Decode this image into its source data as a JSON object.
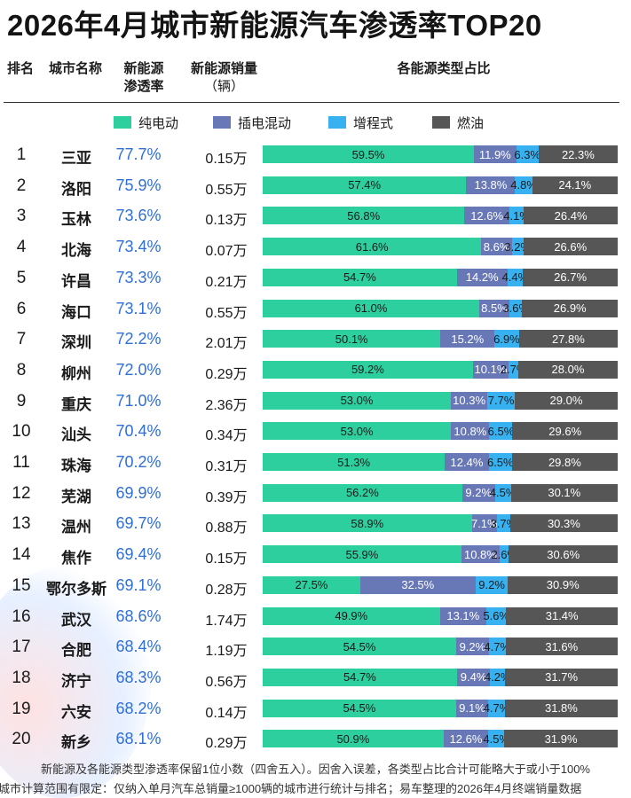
{
  "title": "2026年4月城市新能源汽车渗透率TOP20",
  "headers": {
    "rank": "排名",
    "city": "城市名称",
    "penetration_1": "新能源",
    "penetration_2": "渗透率",
    "sales_1": "新能源销量",
    "sales_2": "（辆）",
    "mix": "各能源类型占比"
  },
  "legend": [
    {
      "label": "纯电动",
      "color": "#2ecf9e"
    },
    {
      "label": "插电混动",
      "color": "#6878b6"
    },
    {
      "label": "增程式",
      "color": "#37b1f0"
    },
    {
      "label": "燃油",
      "color": "#565656"
    }
  ],
  "chart_data": {
    "type": "bar",
    "stacked": true,
    "normalized": true,
    "categories": [
      "三亚",
      "洛阳",
      "玉林",
      "北海",
      "许昌",
      "海口",
      "深圳",
      "柳州",
      "重庆",
      "汕头",
      "珠海",
      "芜湖",
      "温州",
      "焦作",
      "鄂尔多斯",
      "武汉",
      "合肥",
      "济宁",
      "六安",
      "新乡"
    ],
    "series": [
      {
        "name": "纯电动",
        "values": [
          59.5,
          57.4,
          56.8,
          61.6,
          54.7,
          61.0,
          50.1,
          59.2,
          53.0,
          53.0,
          51.3,
          56.2,
          58.9,
          55.9,
          27.5,
          49.9,
          54.5,
          54.7,
          54.5,
          50.9
        ]
      },
      {
        "name": "插电混动",
        "values": [
          11.9,
          13.8,
          12.6,
          8.6,
          14.2,
          8.5,
          15.2,
          10.1,
          10.3,
          10.8,
          12.4,
          9.2,
          7.1,
          10.8,
          32.5,
          13.1,
          9.2,
          9.4,
          9.1,
          12.6
        ]
      },
      {
        "name": "增程式",
        "values": [
          6.3,
          4.8,
          4.1,
          3.2,
          4.4,
          3.6,
          6.9,
          2.7,
          7.7,
          6.5,
          6.5,
          4.5,
          3.7,
          2.6,
          9.2,
          5.6,
          4.7,
          4.2,
          4.7,
          4.5
        ]
      },
      {
        "name": "燃油",
        "values": [
          22.3,
          24.1,
          26.4,
          26.6,
          26.7,
          26.9,
          27.8,
          28.0,
          29.0,
          29.6,
          29.8,
          30.1,
          30.3,
          30.6,
          30.9,
          31.4,
          31.6,
          31.7,
          31.8,
          31.9
        ]
      }
    ]
  },
  "rows": [
    {
      "rank": "1",
      "city": "三亚",
      "penetration": "77.7%",
      "sales": "0.15万"
    },
    {
      "rank": "2",
      "city": "洛阳",
      "penetration": "75.9%",
      "sales": "0.55万"
    },
    {
      "rank": "3",
      "city": "玉林",
      "penetration": "73.6%",
      "sales": "0.13万"
    },
    {
      "rank": "4",
      "city": "北海",
      "penetration": "73.4%",
      "sales": "0.07万"
    },
    {
      "rank": "5",
      "city": "许昌",
      "penetration": "73.3%",
      "sales": "0.21万"
    },
    {
      "rank": "6",
      "city": "海口",
      "penetration": "73.1%",
      "sales": "0.55万"
    },
    {
      "rank": "7",
      "city": "深圳",
      "penetration": "72.2%",
      "sales": "2.01万"
    },
    {
      "rank": "8",
      "city": "柳州",
      "penetration": "72.0%",
      "sales": "0.29万"
    },
    {
      "rank": "9",
      "city": "重庆",
      "penetration": "71.0%",
      "sales": "2.36万"
    },
    {
      "rank": "10",
      "city": "汕头",
      "penetration": "70.4%",
      "sales": "0.34万"
    },
    {
      "rank": "11",
      "city": "珠海",
      "penetration": "70.2%",
      "sales": "0.31万"
    },
    {
      "rank": "12",
      "city": "芜湖",
      "penetration": "69.9%",
      "sales": "0.39万"
    },
    {
      "rank": "13",
      "city": "温州",
      "penetration": "69.7%",
      "sales": "0.88万"
    },
    {
      "rank": "14",
      "city": "焦作",
      "penetration": "69.4%",
      "sales": "0.15万"
    },
    {
      "rank": "15",
      "city": "鄂尔多斯",
      "penetration": "69.1%",
      "sales": "0.28万"
    },
    {
      "rank": "16",
      "city": "武汉",
      "penetration": "68.6%",
      "sales": "1.74万"
    },
    {
      "rank": "17",
      "city": "合肥",
      "penetration": "68.4%",
      "sales": "1.19万"
    },
    {
      "rank": "18",
      "city": "济宁",
      "penetration": "68.3%",
      "sales": "0.56万"
    },
    {
      "rank": "19",
      "city": "六安",
      "penetration": "68.2%",
      "sales": "0.14万"
    },
    {
      "rank": "20",
      "city": "新乡",
      "penetration": "68.1%",
      "sales": "0.29万"
    }
  ],
  "notes": [
    "新能源及各能源类型渗透率保留1位小数（四舍五入）。因舍入误差，各类型占比合计可能略大于或小于100%",
    "城市计算范围有限定：仅纳入单月汽车总销量≥1000辆的城市进行统计与排名；易车整理的2026年4月终端销量数据"
  ]
}
